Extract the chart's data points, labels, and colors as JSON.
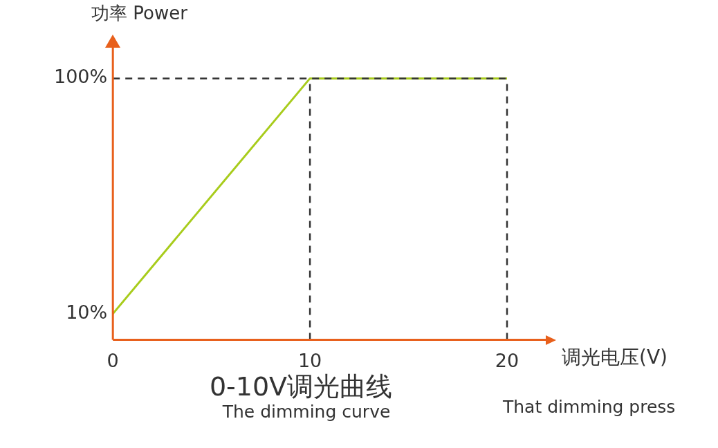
{
  "chart_data": {
    "type": "line",
    "title": "0-10V调光曲线",
    "subtitle": "The dimming curve",
    "xlabel": "调光电压(V)",
    "ylabel": "功率 Power",
    "annotations": [
      "That dimming press"
    ],
    "x": [
      0,
      10,
      20
    ],
    "series": [
      {
        "color": "#a8cc1c",
        "values": [
          10,
          100,
          100
        ]
      }
    ],
    "xlim": [
      0,
      22
    ],
    "xticks": [
      0,
      10,
      20
    ],
    "ylim": [
      0,
      112
    ],
    "yticks": [
      {
        "value": 10,
        "label": "10%"
      },
      {
        "value": 100,
        "label": "100%"
      }
    ],
    "ref_lines": [
      {
        "axis": "y",
        "value": 100,
        "color": "#333333",
        "line_style": "dashed"
      },
      {
        "axis": "x",
        "value": 10,
        "color": "#333333",
        "line_style": "dashed"
      },
      {
        "axis": "x",
        "value": 20,
        "color": "#333333",
        "line_style": "dashed"
      }
    ],
    "grid": false,
    "legend": false,
    "marker": "none",
    "line_style": "solid"
  }
}
